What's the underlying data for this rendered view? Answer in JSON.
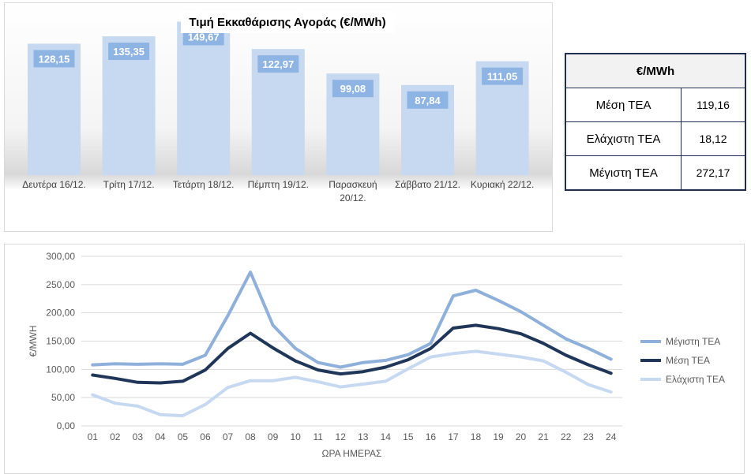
{
  "chart_data": [
    {
      "type": "bar",
      "title": "Τιμή Εκκαθάρισης Αγοράς (€/MWh)",
      "categories": [
        "Δευτέρα 16/12.",
        "Τρίτη 17/12.",
        "Τετάρτη 18/12.",
        "Πέμπτη 19/12.",
        "Παρασκευή 20/12.",
        "Σάββατο 21/12.",
        "Κυριακή 22/12."
      ],
      "values": [
        128.15,
        135.35,
        149.67,
        122.97,
        99.08,
        87.84,
        111.05
      ],
      "value_labels": [
        "128,15",
        "135,35",
        "149,67",
        "122,97",
        "99,08",
        "87,84",
        "111,05"
      ],
      "ylim": [
        0,
        160
      ],
      "colors": {
        "bar": "#c6d9f1",
        "label_bg": "#8eb4e3"
      }
    },
    {
      "type": "line",
      "x": [
        "01",
        "02",
        "03",
        "04",
        "05",
        "06",
        "07",
        "08",
        "09",
        "10",
        "11",
        "12",
        "13",
        "14",
        "15",
        "16",
        "17",
        "18",
        "19",
        "20",
        "21",
        "22",
        "23",
        "24"
      ],
      "xlabel": "ΩΡΑ ΗΜΕΡΑΣ",
      "ylabel": "€/MWH",
      "ylim": [
        0,
        300
      ],
      "yticks": [
        "0,00",
        "50,00",
        "100,00",
        "150,00",
        "200,00",
        "250,00",
        "300,00"
      ],
      "grid": true,
      "legend_position": "right",
      "series": [
        {
          "name": "Μέγιστη ΤΕΑ",
          "color": "#8eb0db",
          "values": [
            108,
            110,
            109,
            110,
            109,
            125,
            195,
            272,
            178,
            137,
            112,
            104,
            112,
            116,
            126,
            146,
            230,
            240,
            222,
            202,
            178,
            154,
            137,
            118
          ]
        },
        {
          "name": "Μέση ΤΕΑ",
          "color": "#1f3659",
          "values": [
            90,
            84,
            77,
            76,
            79,
            99,
            137,
            164,
            138,
            115,
            99,
            92,
            96,
            104,
            117,
            137,
            173,
            178,
            172,
            163,
            146,
            125,
            108,
            93
          ]
        },
        {
          "name": "Ελάχιστη ΤΕΑ",
          "color": "#c6d9f1",
          "values": [
            55,
            40,
            35,
            20,
            18,
            38,
            68,
            80,
            80,
            86,
            78,
            69,
            74,
            79,
            101,
            122,
            128,
            132,
            127,
            122,
            115,
            95,
            73,
            60
          ]
        }
      ]
    }
  ],
  "stats_table": {
    "header": "€/MWh",
    "rows": [
      {
        "label": "Μέση ΤΕΑ",
        "value": "119,16"
      },
      {
        "label": "Ελάχιστη ΤΕΑ",
        "value": "18,12"
      },
      {
        "label": "Μέγιστη ΤΕΑ",
        "value": "272,17"
      }
    ]
  }
}
